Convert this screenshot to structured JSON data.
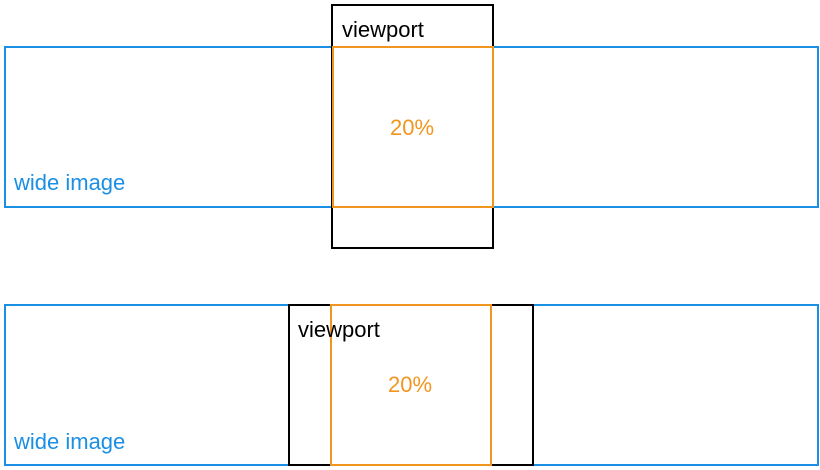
{
  "colors": {
    "image": "#1a8fe3",
    "viewport": "#000000",
    "crop": "#f0961e"
  },
  "diagram_top": {
    "image_label": "wide image",
    "viewport_label": "viewport",
    "crop_label": "20%"
  },
  "diagram_bottom": {
    "image_label": "wide image",
    "viewport_label": "viewport",
    "crop_label": "20%"
  }
}
